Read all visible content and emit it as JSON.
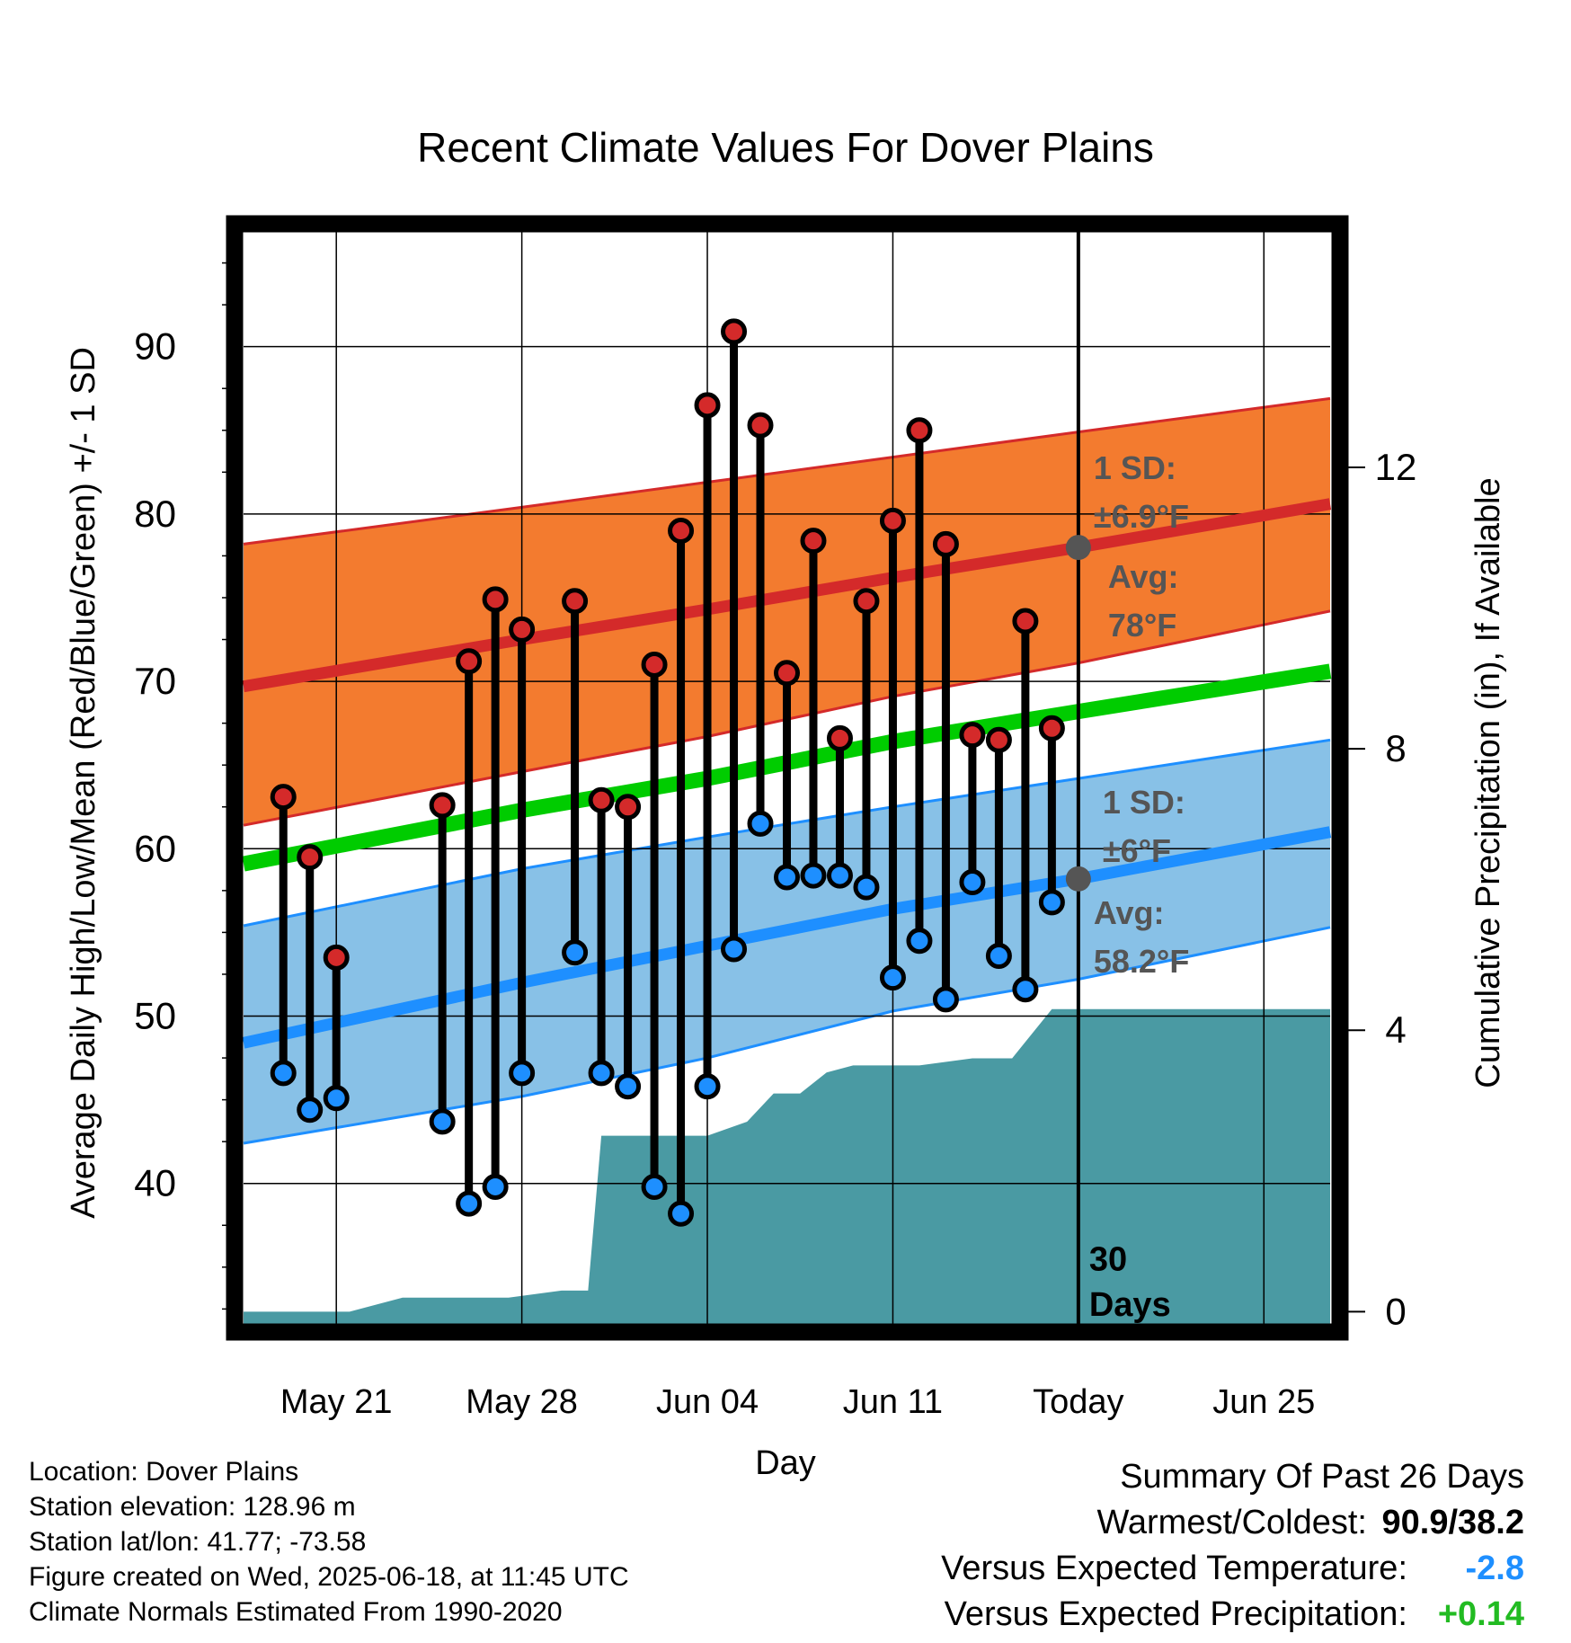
{
  "colors": {
    "high_band": "#f37b2f",
    "high_mean": "#d42a2a",
    "low_band": "#88c1e7",
    "low_mean": "#1e8fff",
    "overall_mean": "#00cc00",
    "precip": "#4a9aa3",
    "avg_marker": "#555555",
    "annotation": "#555555",
    "high_dot": "#d42a2a",
    "low_dot": "#1e8fff"
  },
  "chart_data": {
    "type": "line",
    "title": "Recent Climate Values For Dover Plains",
    "xlabel": "Day",
    "ylabel": "Average Daily High/Low/Mean (Red/Blue/Green) +/- 1 SD",
    "y2label": "Cumulative Precipitation (in), If Available",
    "x_ticks": [
      "May 21",
      "May 28",
      "Jun 04",
      "Jun 11",
      "Today",
      "Jun 25"
    ],
    "x_tick_days": [
      -28,
      -21,
      -14,
      -7,
      0,
      7
    ],
    "x_range_days": [
      -31.5,
      9.5
    ],
    "y_ticks": [
      40,
      50,
      60,
      70,
      80,
      90
    ],
    "ylim": [
      31.5,
      97.5
    ],
    "y2_ticks": [
      0,
      4,
      8,
      12
    ],
    "y2lim": [
      -0.2,
      15.5
    ],
    "grid": true,
    "normals": {
      "days": [
        -31.5,
        -21,
        -14,
        -7,
        0,
        9.5
      ],
      "high_mean": [
        69.7,
        72.5,
        74.3,
        76.2,
        78.0,
        80.6
      ],
      "high_plus_sd": [
        78.2,
        80.4,
        81.9,
        83.4,
        84.9,
        86.9
      ],
      "high_minus_sd": [
        61.4,
        64.6,
        66.7,
        69.1,
        71.1,
        74.2
      ],
      "mean": [
        59.1,
        62.3,
        64.2,
        66.4,
        68.2,
        70.6
      ],
      "low_mean": [
        48.4,
        52.0,
        54.2,
        56.4,
        58.2,
        61.0
      ],
      "low_plus_sd": [
        55.4,
        58.8,
        60.7,
        62.5,
        64.2,
        66.5
      ],
      "low_minus_sd": [
        42.4,
        45.2,
        47.5,
        50.3,
        52.2,
        55.3
      ]
    },
    "observations": {
      "days": [
        -30,
        -29,
        -28,
        -24,
        -23,
        -22,
        -21,
        -19,
        -18,
        -17,
        -16,
        -15,
        -14,
        -13,
        -12,
        -11,
        -10,
        -9,
        -8,
        -7,
        -6,
        -5,
        -4,
        -3,
        -2,
        -1
      ],
      "high": [
        63.1,
        59.5,
        53.5,
        62.6,
        71.2,
        74.9,
        73.1,
        74.8,
        62.9,
        62.5,
        71.0,
        79.0,
        86.5,
        90.9,
        85.3,
        70.5,
        78.4,
        66.6,
        74.8,
        79.6,
        85.0,
        78.2,
        66.8,
        66.5,
        73.6,
        67.2
      ],
      "low": [
        46.6,
        44.4,
        45.1,
        43.7,
        38.8,
        39.8,
        46.6,
        53.8,
        46.6,
        45.8,
        39.8,
        38.2,
        45.8,
        54.0,
        61.5,
        58.3,
        58.4,
        58.4,
        57.7,
        52.3,
        54.5,
        51.0,
        58.0,
        53.6,
        51.6,
        56.8
      ]
    },
    "cumulative_precip": {
      "days": [
        -31.5,
        -27.5,
        -25.5,
        -21.5,
        -19.5,
        -18.5,
        -18.0,
        -14.0,
        -12.5,
        -11.5,
        -10.5,
        -9.5,
        -8.5,
        -6.0,
        -4.0,
        -2.5,
        -1.0,
        9.5
      ],
      "values": [
        0,
        0,
        0.2,
        0.2,
        0.3,
        0.3,
        2.5,
        2.5,
        2.7,
        3.1,
        3.1,
        3.4,
        3.5,
        3.5,
        3.6,
        3.6,
        4.3,
        4.3
      ]
    },
    "annotations": {
      "high_sd_label": "1 SD:",
      "high_sd_value": "±6.9°F",
      "high_avg_label": "Avg:",
      "high_avg_value": "78°F",
      "low_sd_label": "1 SD:",
      "low_sd_value": "±6°F",
      "low_avg_label": "Avg:",
      "low_avg_value": "58.2°F",
      "today_label_1": "30",
      "today_label_2": "Days",
      "high_avg": 78.0,
      "low_avg": 58.2
    }
  },
  "footer_left": [
    "Location: Dover Plains",
    "Station elevation: 128.96 m",
    "Station lat/lon: 41.77; -73.58",
    "Figure created on Wed, 2025-06-18, at 11:45 UTC",
    "Climate Normals Estimated From 1990-2020"
  ],
  "summary": {
    "title": "Summary Of Past 26 Days",
    "warmest_coldest_label": "Warmest/Coldest:",
    "warmest_coldest_value": "90.9/38.2",
    "temp_label": "Versus Expected Temperature:",
    "temp_value": "-2.8",
    "temp_color": "#1e8fff",
    "precip_label": "Versus Expected Precipitation:",
    "precip_value": "+0.14",
    "precip_color": "#22bb22"
  }
}
